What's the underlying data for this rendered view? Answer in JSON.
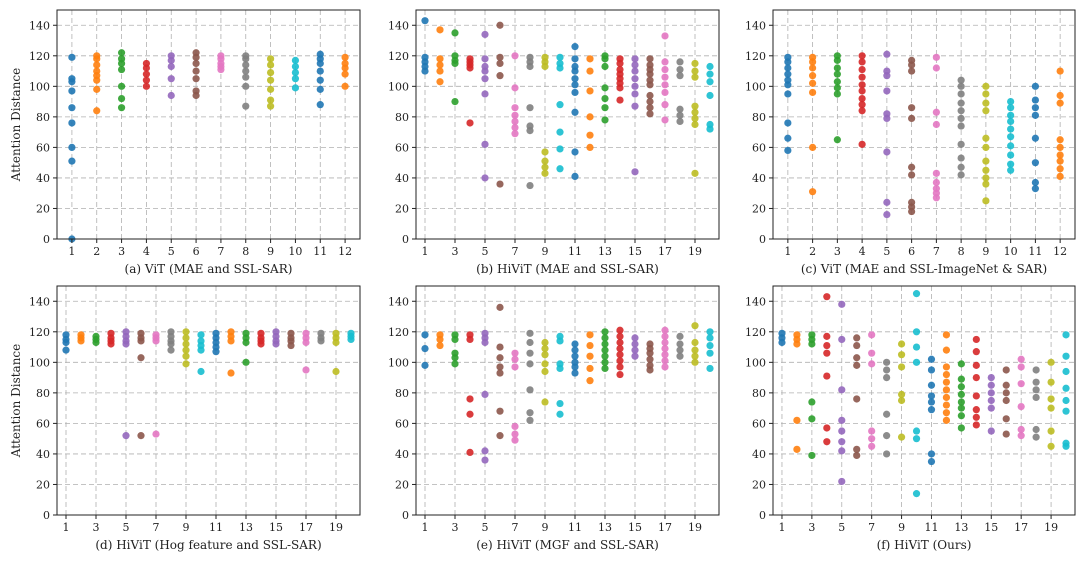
{
  "colors": [
    "#1f77b4",
    "#ff7f0e",
    "#2ca02c",
    "#d62728",
    "#9467bd",
    "#8c564b",
    "#e377c2",
    "#7f7f7f",
    "#bcbd22",
    "#17becf",
    "#1f77b4",
    "#ff7f0e",
    "#2ca02c",
    "#d62728",
    "#9467bd",
    "#8c564b",
    "#e377c2",
    "#7f7f7f",
    "#bcbd22",
    "#17becf"
  ],
  "chart_data": [
    {
      "type": "scatter",
      "title": "(a) ViT (MAE and SSL-SAR)",
      "ylabel": "Attention Distance",
      "ylim": [
        0,
        150
      ],
      "yticks": [
        0,
        20,
        40,
        60,
        80,
        100,
        120,
        140
      ],
      "xticks": [
        1,
        2,
        3,
        4,
        5,
        6,
        7,
        8,
        9,
        10,
        11,
        12
      ],
      "grid": true,
      "x": [
        1,
        2,
        3,
        4,
        5,
        6,
        7,
        8,
        9,
        10,
        11,
        12
      ],
      "series": [
        [
          119,
          105,
          103,
          97,
          86,
          76,
          60,
          51,
          0
        ],
        [
          120,
          118,
          114,
          110,
          107,
          104,
          98,
          84
        ],
        [
          122,
          118,
          115,
          111,
          100,
          92,
          86
        ],
        [
          115,
          112,
          108,
          104,
          100
        ],
        [
          120,
          117,
          113,
          105,
          94
        ],
        [
          122,
          119,
          115,
          110,
          105,
          97,
          94
        ],
        [
          120,
          118,
          115,
          113,
          111
        ],
        [
          120,
          118,
          114,
          110,
          106,
          100,
          87
        ],
        [
          118,
          114,
          109,
          104,
          98,
          91,
          87
        ],
        [
          117,
          113,
          109,
          105,
          99
        ],
        [
          121,
          118,
          115,
          110,
          104,
          98,
          88
        ],
        [
          119,
          115,
          112,
          108,
          100
        ]
      ]
    },
    {
      "type": "scatter",
      "title": "(b) HiViT (MAE and SSL-SAR)",
      "ylabel": "",
      "ylim": [
        0,
        150
      ],
      "yticks": [
        0,
        20,
        40,
        60,
        80,
        100,
        120,
        140
      ],
      "xticks": [
        1,
        3,
        5,
        7,
        9,
        11,
        13,
        15,
        17,
        19
      ],
      "grid": true,
      "x": [
        1,
        2,
        3,
        4,
        5,
        6,
        7,
        8,
        9,
        10,
        11,
        12,
        13,
        14,
        15,
        16,
        17,
        18,
        19,
        20
      ],
      "series": [
        [
          143,
          119,
          116,
          113,
          110
        ],
        [
          137,
          118,
          114,
          110,
          103
        ],
        [
          135,
          120,
          117,
          115,
          90
        ],
        [
          118,
          116,
          114,
          112,
          76
        ],
        [
          134,
          118,
          113,
          110,
          105,
          95,
          62,
          40
        ],
        [
          140,
          119,
          115,
          107,
          36
        ],
        [
          120,
          99,
          86,
          81,
          77,
          73,
          69
        ],
        [
          119,
          116,
          113,
          86,
          74,
          71,
          35
        ],
        [
          119,
          116,
          113,
          57,
          51,
          47,
          43
        ],
        [
          119,
          115,
          112,
          88,
          70,
          59,
          46
        ],
        [
          126,
          118,
          113,
          110,
          105,
          101,
          96,
          83,
          57,
          41
        ],
        [
          118,
          110,
          97,
          80,
          68,
          60
        ],
        [
          120,
          118,
          113,
          99,
          92,
          86,
          78
        ],
        [
          118,
          115,
          111,
          108,
          105,
          102,
          99,
          91
        ],
        [
          118,
          114,
          110,
          105,
          100,
          95,
          87,
          44
        ],
        [
          118,
          114,
          111,
          108,
          104,
          101,
          94,
          90,
          86,
          82
        ],
        [
          133,
          116,
          111,
          106,
          101,
          96,
          88,
          78
        ],
        [
          116,
          111,
          107,
          85,
          81,
          77
        ],
        [
          115,
          110,
          106,
          87,
          83,
          79,
          75,
          43
        ],
        [
          113,
          108,
          103,
          94,
          75,
          72
        ]
      ]
    },
    {
      "type": "scatter",
      "title": "(c) ViT (MAE and SSL-ImageNet & SAR)",
      "ylabel": "",
      "ylim": [
        0,
        150
      ],
      "yticks": [
        0,
        20,
        40,
        60,
        80,
        100,
        120,
        140
      ],
      "xticks": [
        1,
        2,
        3,
        4,
        5,
        6,
        7,
        8,
        9,
        10,
        11,
        12
      ],
      "grid": true,
      "x": [
        1,
        2,
        3,
        4,
        5,
        6,
        7,
        8,
        9,
        10,
        11,
        12
      ],
      "series": [
        [
          119,
          116,
          112,
          108,
          104,
          101,
          95,
          76,
          66,
          58
        ],
        [
          119,
          116,
          112,
          107,
          102,
          96,
          60,
          31
        ],
        [
          120,
          117,
          112,
          108,
          103,
          99,
          95,
          65
        ],
        [
          120,
          116,
          111,
          106,
          101,
          97,
          92,
          88,
          84,
          62
        ],
        [
          121,
          110,
          107,
          97,
          82,
          79,
          57,
          24,
          16
        ],
        [
          117,
          114,
          110,
          86,
          79,
          47,
          42,
          24,
          21,
          18
        ],
        [
          119,
          112,
          83,
          75,
          43,
          37,
          33,
          30,
          27
        ],
        [
          104,
          100,
          95,
          89,
          84,
          79,
          74,
          62,
          53,
          47,
          42
        ],
        [
          100,
          95,
          89,
          84,
          66,
          60,
          51,
          45,
          40,
          36,
          25
        ],
        [
          90,
          86,
          81,
          77,
          72,
          67,
          61,
          55,
          49,
          45
        ],
        [
          100,
          91,
          86,
          81,
          66,
          50,
          37,
          33
        ],
        [
          110,
          94,
          89,
          65,
          60,
          55,
          51,
          46,
          41
        ]
      ]
    },
    {
      "type": "scatter",
      "title": "(d) HiViT (Hog feature and SSL-SAR)",
      "ylabel": "Attention Distance",
      "ylim": [
        0,
        150
      ],
      "yticks": [
        0,
        20,
        40,
        60,
        80,
        100,
        120,
        140
      ],
      "xticks": [
        1,
        3,
        5,
        7,
        9,
        11,
        13,
        15,
        17,
        19
      ],
      "grid": true,
      "x": [
        1,
        2,
        3,
        4,
        5,
        6,
        7,
        8,
        9,
        10,
        11,
        12,
        13,
        14,
        15,
        16,
        17,
        18,
        19,
        20
      ],
      "series": [
        [
          118,
          115,
          113,
          108
        ],
        [
          118,
          116,
          114
        ],
        [
          117,
          115,
          113
        ],
        [
          119,
          116,
          114,
          112
        ],
        [
          120,
          117,
          114,
          112,
          52
        ],
        [
          119,
          116,
          114,
          103,
          52
        ],
        [
          118,
          116,
          114,
          53
        ],
        [
          120,
          117,
          114,
          112,
          108
        ],
        [
          120,
          116,
          112,
          108,
          104,
          99
        ],
        [
          118,
          114,
          111,
          108,
          94
        ],
        [
          119,
          116,
          113,
          110,
          107
        ],
        [
          120,
          117,
          114,
          93
        ],
        [
          119,
          116,
          113,
          100
        ],
        [
          119,
          116,
          114,
          112
        ],
        [
          120,
          117,
          114,
          112
        ],
        [
          119,
          116,
          114,
          111
        ],
        [
          119,
          116,
          113,
          95
        ],
        [
          119,
          116,
          114
        ],
        [
          119,
          116,
          113,
          94
        ],
        [
          119,
          117,
          115
        ]
      ]
    },
    {
      "type": "scatter",
      "title": "(e) HiViT (MGF and SSL-SAR)",
      "ylabel": "",
      "ylim": [
        0,
        150
      ],
      "yticks": [
        0,
        20,
        40,
        60,
        80,
        100,
        120,
        140
      ],
      "xticks": [
        1,
        3,
        5,
        7,
        9,
        11,
        13,
        15,
        17,
        19
      ],
      "grid": true,
      "x": [
        1,
        2,
        3,
        4,
        5,
        6,
        7,
        8,
        9,
        10,
        11,
        12,
        13,
        14,
        15,
        16,
        17,
        18,
        19,
        20
      ],
      "series": [
        [
          118,
          109,
          98
        ],
        [
          118,
          115,
          111
        ],
        [
          118,
          115,
          106,
          103,
          99
        ],
        [
          118,
          115,
          76,
          66,
          41
        ],
        [
          119,
          116,
          113,
          79,
          42,
          36
        ],
        [
          136,
          110,
          103,
          97,
          93,
          68,
          52
        ],
        [
          106,
          102,
          97,
          58,
          53,
          49
        ],
        [
          119,
          113,
          106,
          99,
          82,
          67,
          62
        ],
        [
          113,
          109,
          105,
          99,
          94,
          74
        ],
        [
          117,
          114,
          99,
          96,
          73,
          66
        ],
        [
          112,
          108,
          104,
          100,
          97,
          93
        ],
        [
          118,
          111,
          104,
          96,
          88
        ],
        [
          120,
          116,
          112,
          108,
          104,
          100,
          96
        ],
        [
          121,
          117,
          113,
          109,
          105,
          101,
          97,
          92
        ],
        [
          116,
          112,
          108,
          104
        ],
        [
          112,
          109,
          106,
          102,
          98,
          95
        ],
        [
          121,
          117,
          113,
          109,
          105,
          101,
          97
        ],
        [
          117,
          112,
          108,
          104
        ],
        [
          124,
          113,
          108,
          104,
          100
        ],
        [
          120,
          116,
          111,
          106,
          96
        ]
      ]
    },
    {
      "type": "scatter",
      "title": "(f) HiViT (Ours)",
      "ylabel": "",
      "ylim": [
        0,
        150
      ],
      "yticks": [
        0,
        20,
        40,
        60,
        80,
        100,
        120,
        140
      ],
      "xticks": [
        1,
        3,
        5,
        7,
        9,
        11,
        13,
        15,
        17,
        19
      ],
      "grid": true,
      "x": [
        1,
        2,
        3,
        4,
        5,
        6,
        7,
        8,
        9,
        10,
        11,
        12,
        13,
        14,
        15,
        16,
        17,
        18,
        19,
        20
      ],
      "series": [
        [
          119,
          116,
          113
        ],
        [
          118,
          115,
          112,
          62,
          43
        ],
        [
          118,
          115,
          112,
          74,
          63,
          39
        ],
        [
          143,
          117,
          111,
          106,
          91,
          57,
          48
        ],
        [
          138,
          115,
          82,
          62,
          55,
          48,
          42,
          22
        ],
        [
          116,
          111,
          103,
          98,
          76,
          43,
          39
        ],
        [
          118,
          106,
          99,
          55,
          50,
          45
        ],
        [
          100,
          95,
          90,
          66,
          52,
          40
        ],
        [
          112,
          105,
          97,
          79,
          75,
          51
        ],
        [
          145,
          120,
          110,
          100,
          55,
          50,
          14
        ],
        [
          102,
          95,
          85,
          78,
          74,
          69,
          40,
          35
        ],
        [
          118,
          108,
          97,
          92,
          87,
          82,
          77,
          72,
          67,
          62
        ],
        [
          99,
          89,
          84,
          79,
          74,
          70,
          65,
          57
        ],
        [
          115,
          107,
          98,
          90,
          78,
          69,
          64,
          59
        ],
        [
          90,
          85,
          80,
          75,
          70,
          55
        ],
        [
          95,
          85,
          80,
          75,
          63,
          53
        ],
        [
          102,
          97,
          86,
          71,
          56,
          52
        ],
        [
          95,
          87,
          82,
          77,
          56,
          51
        ],
        [
          100,
          87,
          76,
          70,
          55,
          45
        ],
        [
          118,
          104,
          94,
          83,
          75,
          68,
          47,
          45
        ]
      ]
    }
  ]
}
